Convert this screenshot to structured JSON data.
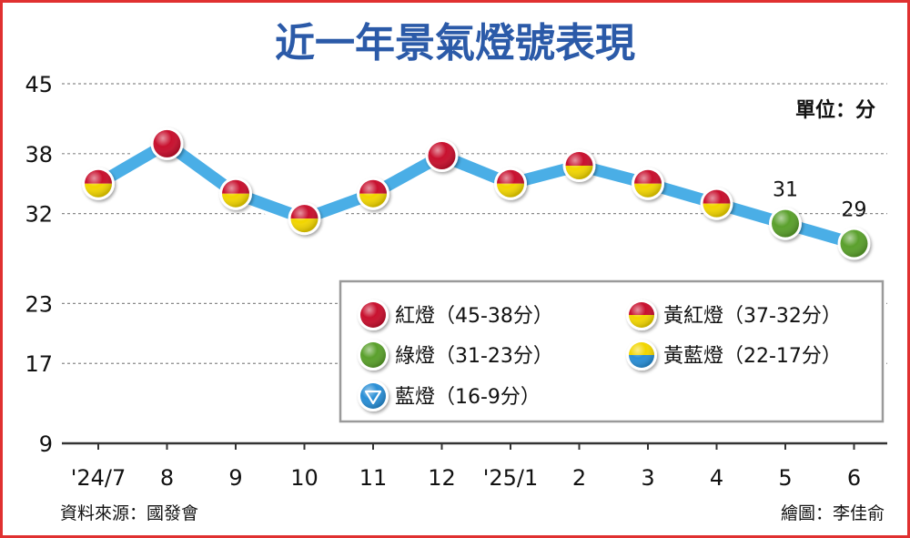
{
  "chart_data": {
    "type": "line",
    "title": "近一年景氣燈號表現",
    "unit_label": "單位：分",
    "source": "資料來源：國發會",
    "credit": "繪圖：李佳俞",
    "yticks": [
      9,
      17,
      23,
      32,
      38,
      45
    ],
    "ylim": [
      9,
      45
    ],
    "grid": true,
    "categories": [
      "'24/7",
      "8",
      "9",
      "10",
      "11",
      "12",
      "'25/1",
      "2",
      "3",
      "4",
      "5",
      "6"
    ],
    "values": [
      35,
      39,
      34,
      31.5,
      34,
      37.8,
      35,
      36.8,
      35,
      33,
      31,
      29
    ],
    "signals": [
      "yellow-red",
      "red",
      "yellow-red",
      "yellow-red",
      "yellow-red",
      "red",
      "yellow-red",
      "yellow-red",
      "yellow-red",
      "yellow-red",
      "green",
      "green"
    ],
    "data_labels": [
      null,
      null,
      null,
      null,
      null,
      null,
      null,
      null,
      null,
      null,
      "31",
      "29"
    ],
    "line_color": "#4aaee6",
    "legend": [
      {
        "label": "紅燈（45-38分）",
        "signal": "red"
      },
      {
        "label": "黃紅燈（37-32分）",
        "signal": "yellow-red"
      },
      {
        "label": "綠燈（31-23分）",
        "signal": "green"
      },
      {
        "label": "黃藍燈（22-17分）",
        "signal": "yellow-blue"
      },
      {
        "label": "藍燈（16-9分）",
        "signal": "blue"
      }
    ],
    "signal_colors": {
      "red": "#c8102e",
      "yellow": "#f2d600",
      "green": "#5aa02c",
      "blue": "#2a8fd6"
    }
  }
}
